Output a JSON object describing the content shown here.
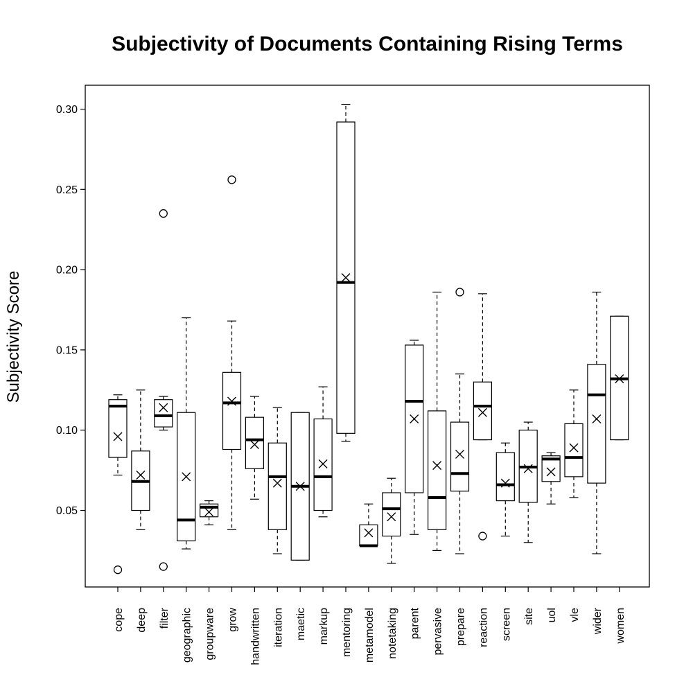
{
  "chart_data": {
    "type": "boxplot",
    "title": "Subjectivity of Documents Containing Rising Terms",
    "xlabel": "",
    "ylabel": "Subjectivity Score",
    "ylim": [
      0.0,
      0.316
    ],
    "yticks": [
      "0.05",
      "0.10",
      "0.15",
      "0.20",
      "0.25",
      "0.30"
    ],
    "grid": false,
    "mean_marker": "x",
    "outlier_marker": "circle",
    "categories": [
      "cope",
      "deep",
      "filter",
      "geographic",
      "groupware",
      "grow",
      "handwritten",
      "iteration",
      "maetic",
      "markup",
      "mentoring",
      "metamodel",
      "notetaking",
      "parent",
      "pervasive",
      "prepare",
      "reaction",
      "screen",
      "site",
      "uol",
      "vle",
      "wider",
      "women"
    ],
    "boxes": [
      {
        "min": 0.072,
        "q1": 0.083,
        "median": 0.115,
        "q3": 0.119,
        "max": 0.122,
        "mean": 0.096,
        "outliers": [
          0.013
        ]
      },
      {
        "min": 0.038,
        "q1": 0.05,
        "median": 0.068,
        "q3": 0.087,
        "max": 0.125,
        "mean": 0.072,
        "outliers": []
      },
      {
        "min": 0.1,
        "q1": 0.102,
        "median": 0.109,
        "q3": 0.119,
        "max": 0.121,
        "mean": 0.114,
        "outliers": [
          0.235,
          0.015
        ]
      },
      {
        "min": 0.026,
        "q1": 0.031,
        "median": 0.044,
        "q3": 0.111,
        "max": 0.17,
        "mean": 0.071,
        "outliers": []
      },
      {
        "min": 0.041,
        "q1": 0.046,
        "median": 0.052,
        "q3": 0.054,
        "max": 0.056,
        "mean": 0.049,
        "outliers": []
      },
      {
        "min": 0.038,
        "q1": 0.088,
        "median": 0.117,
        "q3": 0.136,
        "max": 0.168,
        "mean": 0.118,
        "outliers": [
          0.256
        ]
      },
      {
        "min": 0.057,
        "q1": 0.076,
        "median": 0.094,
        "q3": 0.108,
        "max": 0.121,
        "mean": 0.091,
        "outliers": []
      },
      {
        "min": 0.023,
        "q1": 0.038,
        "median": 0.071,
        "q3": 0.092,
        "max": 0.114,
        "mean": 0.067,
        "outliers": []
      },
      {
        "min": 0.019,
        "q1": 0.019,
        "median": 0.065,
        "q3": 0.111,
        "max": 0.111,
        "mean": 0.065,
        "outliers": []
      },
      {
        "min": 0.046,
        "q1": 0.05,
        "median": 0.071,
        "q3": 0.107,
        "max": 0.127,
        "mean": 0.079,
        "outliers": []
      },
      {
        "min": 0.093,
        "q1": 0.098,
        "median": 0.192,
        "q3": 0.292,
        "max": 0.303,
        "mean": 0.195,
        "outliers": []
      },
      {
        "min": 0.028,
        "q1": 0.028,
        "median": 0.028,
        "q3": 0.041,
        "max": 0.054,
        "mean": 0.036,
        "outliers": []
      },
      {
        "min": 0.017,
        "q1": 0.034,
        "median": 0.051,
        "q3": 0.061,
        "max": 0.07,
        "mean": 0.046,
        "outliers": []
      },
      {
        "min": 0.035,
        "q1": 0.061,
        "median": 0.118,
        "q3": 0.153,
        "max": 0.156,
        "mean": 0.107,
        "outliers": []
      },
      {
        "min": 0.025,
        "q1": 0.038,
        "median": 0.058,
        "q3": 0.112,
        "max": 0.186,
        "mean": 0.078,
        "outliers": []
      },
      {
        "min": 0.023,
        "q1": 0.062,
        "median": 0.073,
        "q3": 0.105,
        "max": 0.135,
        "mean": 0.085,
        "outliers": [
          0.186
        ]
      },
      {
        "min": 0.094,
        "q1": 0.094,
        "median": 0.115,
        "q3": 0.13,
        "max": 0.185,
        "mean": 0.111,
        "outliers": [
          0.034
        ]
      },
      {
        "min": 0.034,
        "q1": 0.056,
        "median": 0.066,
        "q3": 0.086,
        "max": 0.092,
        "mean": 0.067,
        "outliers": []
      },
      {
        "min": 0.03,
        "q1": 0.055,
        "median": 0.077,
        "q3": 0.1,
        "max": 0.105,
        "mean": 0.076,
        "outliers": []
      },
      {
        "min": 0.054,
        "q1": 0.068,
        "median": 0.082,
        "q3": 0.084,
        "max": 0.086,
        "mean": 0.074,
        "outliers": []
      },
      {
        "min": 0.058,
        "q1": 0.071,
        "median": 0.083,
        "q3": 0.104,
        "max": 0.125,
        "mean": 0.089,
        "outliers": []
      },
      {
        "min": 0.023,
        "q1": 0.067,
        "median": 0.122,
        "q3": 0.141,
        "max": 0.186,
        "mean": 0.107,
        "outliers": []
      },
      {
        "min": 0.094,
        "q1": 0.094,
        "median": 0.132,
        "q3": 0.171,
        "max": 0.171,
        "mean": 0.132,
        "outliers": []
      }
    ]
  }
}
